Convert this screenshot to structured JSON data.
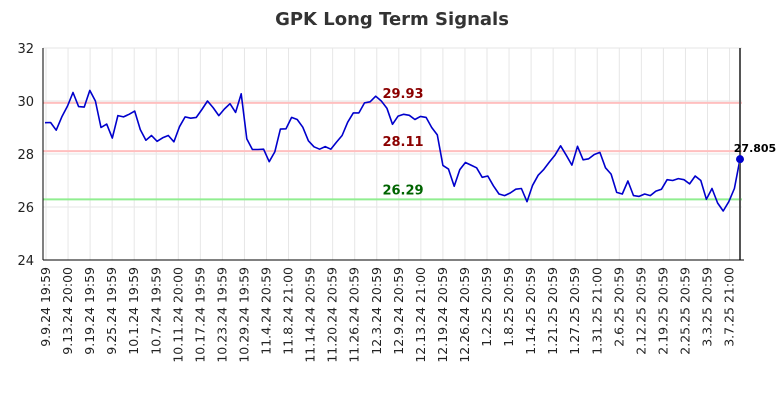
{
  "chart_data": {
    "type": "line",
    "title": "GPK Long Term Signals",
    "xlabel": "",
    "ylabel": "",
    "ylim": [
      24,
      32
    ],
    "yticks": [
      "24",
      "26",
      "28",
      "30",
      "32"
    ],
    "grid": true,
    "xtick_labels": [
      "9.9.24 19:59",
      "9.13.24 20:00",
      "9.19.24 19:59",
      "9.25.24 19:59",
      "10.1.24 19:59",
      "10.7.24 19:59",
      "10.11.24 20:00",
      "10.17.24 19:59",
      "10.23.24 19:59",
      "10.29.24 19:59",
      "11.4.24 20:59",
      "11.8.24 21:00",
      "11.14.24 20:59",
      "11.20.24 20:59",
      "11.26.24 20:59",
      "12.3.24 20:59",
      "12.9.24 20:59",
      "12.13.24 21:00",
      "12.19.24 20:59",
      "12.26.24 20:59",
      "1.2.25 20:59",
      "1.8.25 20:59",
      "1.14.25 20:59",
      "1.21.25 20:59",
      "1.27.25 20:59",
      "1.31.25 21:00",
      "2.6.25 20:59",
      "2.12.25 20:59",
      "2.19.25 20:59",
      "2.25.25 20:59",
      "3.3.25 20:59",
      "3.7.25 21:00"
    ],
    "series": [
      {
        "color": "#0000cc",
        "values": [
          29.18,
          29.19,
          28.9,
          29.4,
          29.8,
          30.32,
          29.79,
          29.77,
          30.4,
          30.0,
          29.0,
          29.13,
          28.6,
          29.45,
          29.4,
          29.5,
          29.62,
          28.92,
          28.52,
          28.7,
          28.48,
          28.61,
          28.7,
          28.46,
          29.03,
          29.4,
          29.35,
          29.38,
          29.68,
          30.0,
          29.75,
          29.45,
          29.7,
          29.9,
          29.57,
          30.27,
          28.57,
          28.17,
          28.17,
          28.18,
          27.71,
          28.08,
          28.94,
          28.95,
          29.38,
          29.3,
          29.01,
          28.5,
          28.27,
          28.18,
          28.28,
          28.18,
          28.45,
          28.7,
          29.2,
          29.55,
          29.55,
          29.93,
          29.97,
          30.18,
          30.0,
          29.73,
          29.12,
          29.43,
          29.5,
          29.46,
          29.3,
          29.42,
          29.38,
          29.0,
          28.72,
          27.57,
          27.43,
          26.78,
          27.41,
          27.68,
          27.58,
          27.48,
          27.12,
          27.17,
          26.8,
          26.49,
          26.43,
          26.53,
          26.67,
          26.7,
          26.2,
          26.82,
          27.2,
          27.42,
          27.7,
          27.96,
          28.31,
          27.95,
          27.58,
          28.29,
          27.78,
          27.82,
          27.98,
          28.06,
          27.48,
          27.24,
          26.55,
          26.49,
          26.98,
          26.43,
          26.4,
          26.49,
          26.43,
          26.6,
          26.67,
          27.03,
          27.0,
          27.07,
          27.03,
          26.87,
          27.17,
          27.0,
          26.29,
          26.7,
          26.15,
          25.85,
          26.2,
          26.7,
          27.805
        ]
      }
    ],
    "levels": [
      {
        "value": 29.93,
        "label": "29.93",
        "line_color": "#ffbfbf",
        "text_color": "#8b0000"
      },
      {
        "value": 28.11,
        "label": "28.11",
        "line_color": "#ffbfbf",
        "text_color": "#8b0000"
      },
      {
        "value": 26.29,
        "label": "26.29",
        "line_color": "#90ee90",
        "text_color": "#006400"
      }
    ],
    "last_value_label": "27.805"
  }
}
